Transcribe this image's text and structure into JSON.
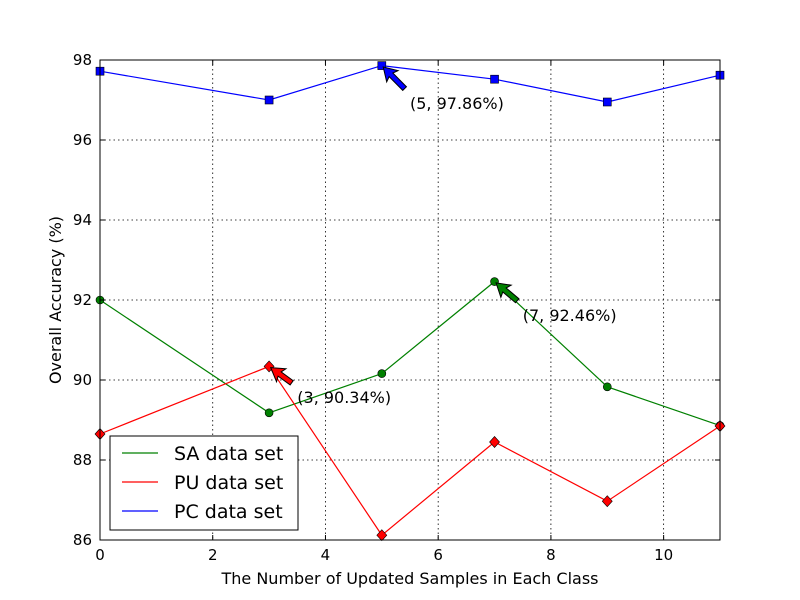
{
  "chart_data": {
    "type": "line",
    "xlabel": "The Number of Updated Samples in Each Class",
    "ylabel": "Overall Accuracy (%)",
    "xlim": [
      0,
      11
    ],
    "ylim": [
      86,
      98
    ],
    "xticks": [
      0,
      2,
      4,
      6,
      8,
      10
    ],
    "yticks": [
      86,
      88,
      90,
      92,
      94,
      96,
      98
    ],
    "grid": true,
    "legend_position": "bottom-left",
    "series": [
      {
        "name": "SA data set",
        "color": "#008000",
        "marker": "circle",
        "x": [
          0,
          3,
          5,
          7,
          9,
          11
        ],
        "y": [
          92.0,
          89.18,
          90.16,
          92.46,
          89.83,
          88.86
        ]
      },
      {
        "name": "PU data set",
        "color": "#ff0000",
        "marker": "diamond",
        "x": [
          0,
          3,
          5,
          7,
          9,
          11
        ],
        "y": [
          88.65,
          90.34,
          86.12,
          88.45,
          86.97,
          88.85
        ]
      },
      {
        "name": "PC data set",
        "color": "#0000ff",
        "marker": "square",
        "x": [
          0,
          3,
          5,
          7,
          9,
          11
        ],
        "y": [
          97.72,
          97.0,
          97.86,
          97.52,
          96.95,
          97.62
        ]
      }
    ],
    "annotations": [
      {
        "text": "(5, 97.86%)",
        "x": 5,
        "y": 97.86,
        "text_x": 5.5,
        "text_y": 96.9,
        "color": "#0000ff"
      },
      {
        "text": "(7, 92.46%)",
        "x": 7,
        "y": 92.46,
        "text_x": 7.5,
        "text_y": 91.6,
        "color": "#008000"
      },
      {
        "text": "(3, 90.34%)",
        "x": 3,
        "y": 90.34,
        "text_x": 3.5,
        "text_y": 89.55,
        "color": "#ff0000"
      }
    ]
  }
}
